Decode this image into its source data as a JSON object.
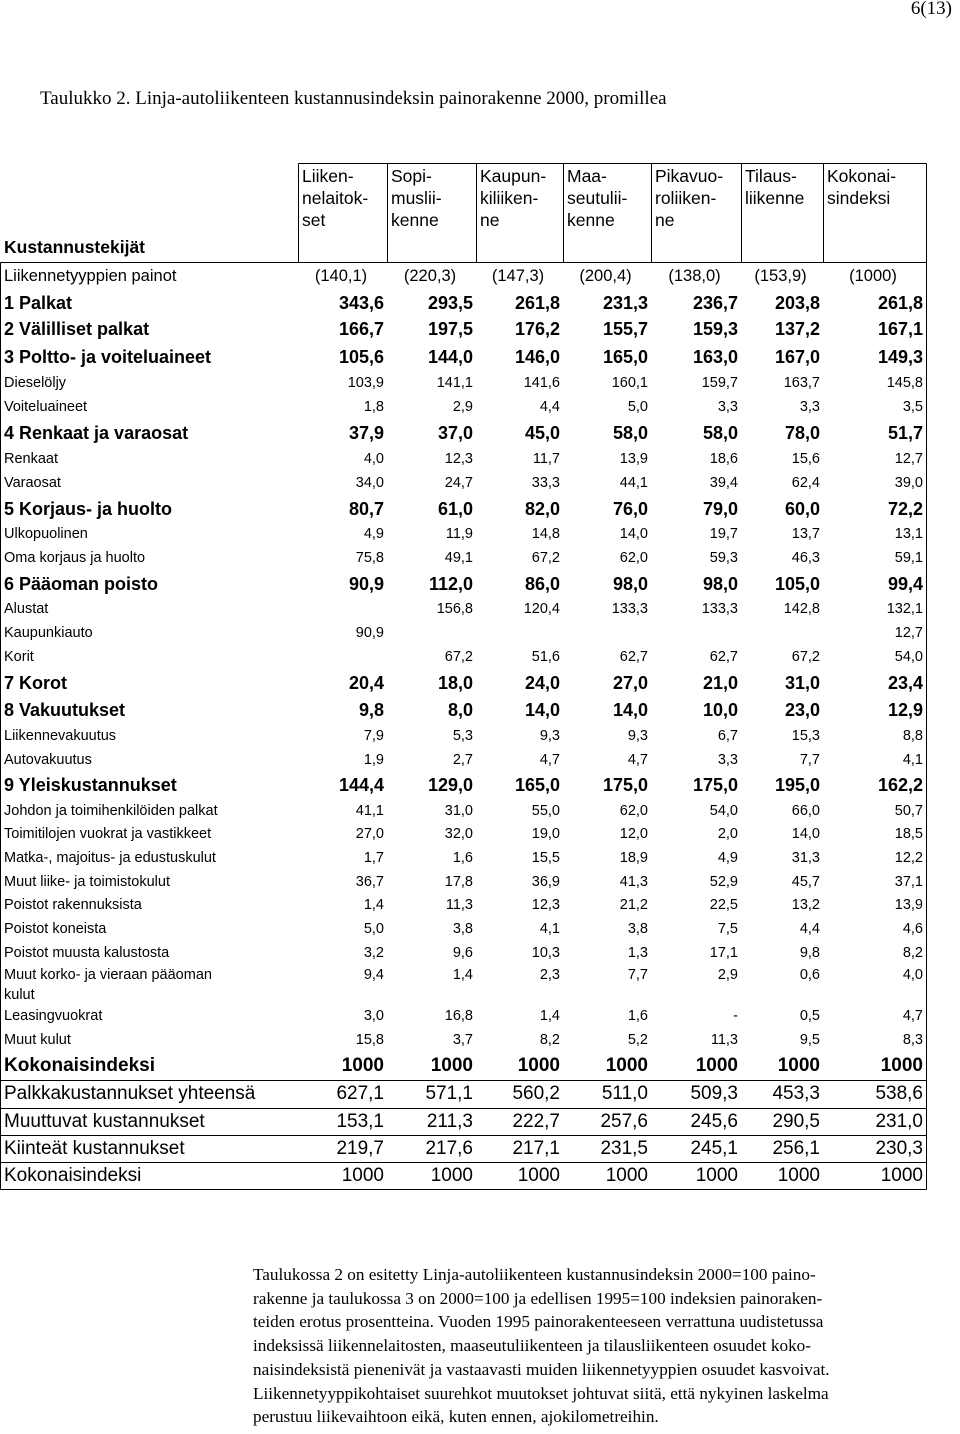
{
  "page_number": "6(13)",
  "caption": "Taulukko 2. Linja-autoliikenteen kustannusindeksin painorakenne 2000, promillea",
  "row_header_label": "Kustannustekijät",
  "columns": [
    {
      "label": "Liiken-\nnelaitok-\nset"
    },
    {
      "label": "Sopi-\nmuslii-\nkenne"
    },
    {
      "label": "Kaupun-\nkiliiken-\nne"
    },
    {
      "label": "Maa-\nseutulii-\nkenne"
    },
    {
      "label": "Pikavuo-\nroliiken-\nne"
    },
    {
      "label": "Tilaus-\nliikenne"
    },
    {
      "label": "Kokonai-\nsindeksi"
    }
  ],
  "rows": [
    {
      "style": "wt",
      "label": "Liikennetyyppien painot",
      "values": [
        "(140,1)",
        "(220,3)",
        "(147,3)",
        "(200,4)",
        "(138,0)",
        "(153,9)",
        "(1000)"
      ]
    },
    {
      "style": "main",
      "label": "1 Palkat",
      "values": [
        "343,6",
        "293,5",
        "261,8",
        "231,3",
        "236,7",
        "203,8",
        "261,8"
      ]
    },
    {
      "style": "main",
      "label": "2 Välilliset palkat",
      "values": [
        "166,7",
        "197,5",
        "176,2",
        "155,7",
        "159,3",
        "137,2",
        "167,1"
      ]
    },
    {
      "style": "main",
      "label": "3 Poltto- ja voiteluaineet",
      "values": [
        "105,6",
        "144,0",
        "146,0",
        "165,0",
        "163,0",
        "167,0",
        "149,3"
      ]
    },
    {
      "style": "sub",
      "label": "Dieselöljy",
      "values": [
        "103,9",
        "141,1",
        "141,6",
        "160,1",
        "159,7",
        "163,7",
        "145,8"
      ]
    },
    {
      "style": "sub",
      "label": "Voiteluaineet",
      "values": [
        "1,8",
        "2,9",
        "4,4",
        "5,0",
        "3,3",
        "3,3",
        "3,5"
      ]
    },
    {
      "style": "main",
      "label": "4 Renkaat ja varaosat",
      "values": [
        "37,9",
        "37,0",
        "45,0",
        "58,0",
        "58,0",
        "78,0",
        "51,7"
      ]
    },
    {
      "style": "sub",
      "label": "Renkaat",
      "values": [
        "4,0",
        "12,3",
        "11,7",
        "13,9",
        "18,6",
        "15,6",
        "12,7"
      ]
    },
    {
      "style": "sub",
      "label": "Varaosat",
      "values": [
        "34,0",
        "24,7",
        "33,3",
        "44,1",
        "39,4",
        "62,4",
        "39,0"
      ]
    },
    {
      "style": "main",
      "label": "5 Korjaus- ja huolto",
      "values": [
        "80,7",
        "61,0",
        "82,0",
        "76,0",
        "79,0",
        "60,0",
        "72,2"
      ]
    },
    {
      "style": "sub",
      "label": "Ulkopuolinen",
      "values": [
        "4,9",
        "11,9",
        "14,8",
        "14,0",
        "19,7",
        "13,7",
        "13,1"
      ]
    },
    {
      "style": "sub",
      "label": "Oma korjaus ja huolto",
      "values": [
        "75,8",
        "49,1",
        "67,2",
        "62,0",
        "59,3",
        "46,3",
        "59,1"
      ]
    },
    {
      "style": "main",
      "label": "6 Pääoman poisto",
      "values": [
        "90,9",
        "112,0",
        "86,0",
        "98,0",
        "98,0",
        "105,0",
        "99,4"
      ]
    },
    {
      "style": "sub",
      "label": "Alustat",
      "values": [
        "",
        "156,8",
        "120,4",
        "133,3",
        "133,3",
        "142,8",
        "132,1"
      ]
    },
    {
      "style": "sub",
      "label": "Kaupunkiauto",
      "values": [
        "90,9",
        "",
        "",
        "",
        "",
        "",
        "12,7"
      ]
    },
    {
      "style": "sub",
      "label": "Korit",
      "values": [
        "",
        "67,2",
        "51,6",
        "62,7",
        "62,7",
        "67,2",
        "54,0"
      ]
    },
    {
      "style": "main",
      "label": "7 Korot",
      "values": [
        "20,4",
        "18,0",
        "24,0",
        "27,0",
        "21,0",
        "31,0",
        "23,4"
      ]
    },
    {
      "style": "main",
      "label": "8 Vakuutukset",
      "values": [
        "9,8",
        "8,0",
        "14,0",
        "14,0",
        "10,0",
        "23,0",
        "12,9"
      ]
    },
    {
      "style": "sub",
      "label": "Liikennevakuutus",
      "values": [
        "7,9",
        "5,3",
        "9,3",
        "9,3",
        "6,7",
        "15,3",
        "8,8"
      ]
    },
    {
      "style": "sub",
      "label": "Autovakuutus",
      "values": [
        "1,9",
        "2,7",
        "4,7",
        "4,7",
        "3,3",
        "7,7",
        "4,1"
      ]
    },
    {
      "style": "main",
      "label": "9 Yleiskustannukset",
      "values": [
        "144,4",
        "129,0",
        "165,0",
        "175,0",
        "175,0",
        "195,0",
        "162,2"
      ]
    },
    {
      "style": "sub",
      "label": "Johdon ja toimihenkilöiden  palkat",
      "values": [
        "41,1",
        "31,0",
        "55,0",
        "62,0",
        "54,0",
        "66,0",
        "50,7"
      ]
    },
    {
      "style": "sub",
      "label": "Toimitilojen vuokrat ja vastikkeet",
      "values": [
        "27,0",
        "32,0",
        "19,0",
        "12,0",
        "2,0",
        "14,0",
        "18,5"
      ]
    },
    {
      "style": "sub",
      "label": "Matka-, majoitus- ja edustuskulut",
      "values": [
        "1,7",
        "1,6",
        "15,5",
        "18,9",
        "4,9",
        "31,3",
        "12,2"
      ]
    },
    {
      "style": "sub",
      "label": "Muut liike- ja toimistokulut",
      "values": [
        "36,7",
        "17,8",
        "36,9",
        "41,3",
        "52,9",
        "45,7",
        "37,1"
      ]
    },
    {
      "style": "sub",
      "label": "Poistot rakennuksista",
      "values": [
        "1,4",
        "11,3",
        "12,3",
        "21,2",
        "22,5",
        "13,2",
        "13,9"
      ]
    },
    {
      "style": "sub",
      "label": "Poistot koneista",
      "values": [
        "5,0",
        "3,8",
        "4,1",
        "3,8",
        "7,5",
        "4,4",
        "4,6"
      ]
    },
    {
      "style": "sub",
      "label": "Poistot muusta kalustosta",
      "values": [
        "3,2",
        "9,6",
        "10,3",
        "1,3",
        "17,1",
        "9,8",
        "8,2"
      ]
    },
    {
      "style": "sub2",
      "label": "Muut korko- ja vieraan pääoman\nkulut",
      "values": [
        "9,4",
        "1,4",
        "2,3",
        "7,7",
        "2,9",
        "0,6",
        "4,0"
      ]
    },
    {
      "style": "sub",
      "label": "Leasingvuokrat",
      "values": [
        "3,0",
        "16,8",
        "1,4",
        "1,6",
        "-",
        "0,5",
        "4,7"
      ]
    },
    {
      "style": "sub",
      "label": "Muut kulut",
      "values": [
        "15,8",
        "3,7",
        "8,2",
        "5,2",
        "11,3",
        "9,5",
        "8,3"
      ]
    },
    {
      "style": "bigb",
      "label": "Kokonaisindeksi",
      "values": [
        "1000",
        "1000",
        "1000",
        "1000",
        "1000",
        "1000",
        "1000"
      ]
    },
    {
      "style": "big",
      "label": "Palkkakustannukset yhteensä",
      "values": [
        "627,1",
        "571,1",
        "560,2",
        "511,0",
        "509,3",
        "453,3",
        "538,6"
      ]
    },
    {
      "style": "big",
      "label": "Muuttuvat kustannukset",
      "values": [
        "153,1",
        "211,3",
        "222,7",
        "257,6",
        "245,6",
        "290,5",
        "231,0"
      ]
    },
    {
      "style": "big",
      "label": "Kiinteät kustannukset",
      "values": [
        "219,7",
        "217,6",
        "217,1",
        "231,5",
        "245,1",
        "256,1",
        "230,3"
      ]
    },
    {
      "style": "big",
      "label": "Kokonaisindeksi",
      "values": [
        "1000",
        "1000",
        "1000",
        "1000",
        "1000",
        "1000",
        "1000"
      ]
    }
  ],
  "footnote_lines": [
    "Taulukossa 2 on esitetty Linja-autoliikenteen kustannusindeksin 2000=100 paino-",
    "rakenne ja taulukossa 3 on 2000=100 ja edellisen 1995=100 indeksien painoraken-",
    "teiden erotus prosentteina. Vuoden 1995 painorakenteeseen verrattuna uudistetussa",
    "indeksissä liikennelaitosten, maaseutuliikenteen ja tilausliikenteen osuudet koko-",
    "naisindeksistä pienenivät ja vastaavasti muiden liikennetyyppien osuudet kasvoivat.",
    "Liikennetyyppikohtaiset suurehkot muutokset johtuvat siitä, että nykyinen laskelma",
    "perustuu liikevaihtoon eikä,  kuten ennen, ajokilometreihin."
  ]
}
